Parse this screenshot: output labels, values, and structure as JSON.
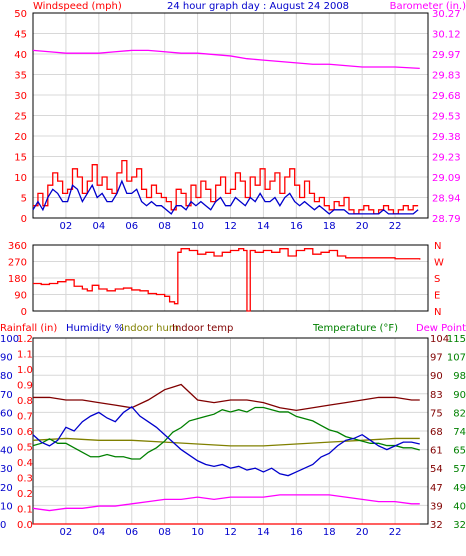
{
  "header": {
    "wind_title": "Windspeed (mph)",
    "graph_title": "24 hour graph day : August 24 2008",
    "baro_title": "Barometer (in.)"
  },
  "colors": {
    "wind": "#ff0000",
    "wind_avg": "#0000cc",
    "baro": "#ff00ff",
    "dir": "#ff0000",
    "humidity": "#0000cc",
    "in_hum": "#808000",
    "in_temp": "#800000",
    "temp": "#008000",
    "dew": "#ff00ff",
    "rain": "#ff0000",
    "axis_red": "#ff0000",
    "axis_blue": "#0000cc",
    "axis_olive": "#808000",
    "axis_maroon": "#800000",
    "axis_green": "#008000",
    "axis_magenta": "#ff00ff",
    "grid": "#d8d8d8",
    "frame": "#000000"
  },
  "chart_data": [
    {
      "type": "line",
      "name": "wind-baro",
      "title": "24 hour graph day : August 24 2008",
      "ylabel_left": "Windspeed (mph)",
      "ylabel_right": "Barometer (in.)",
      "x_ticks": [
        "02",
        "04",
        "06",
        "08",
        "10",
        "12",
        "14",
        "16",
        "18",
        "20",
        "22"
      ],
      "left_ticks": [
        "50",
        "45",
        "40",
        "35",
        "30",
        "25",
        "20",
        "15",
        "10",
        "5",
        "0"
      ],
      "right_ticks": [
        "30.27",
        "30.12",
        "29.97",
        "29.83",
        "29.68",
        "29.53",
        "29.38",
        "29.23",
        "29.09",
        "28.94",
        "28.79"
      ],
      "ylim": [
        0,
        50
      ],
      "baro_ylim": [
        28.79,
        30.27
      ],
      "series": [
        {
          "key": "gust",
          "x": [
            0,
            0.3,
            0.6,
            0.9,
            1.2,
            1.5,
            1.8,
            2.1,
            2.4,
            2.7,
            3.0,
            3.3,
            3.6,
            3.9,
            4.2,
            4.5,
            4.8,
            5.1,
            5.4,
            5.7,
            6.0,
            6.3,
            6.6,
            6.9,
            7.2,
            7.5,
            7.8,
            8.1,
            8.4,
            8.7,
            9.0,
            9.3,
            9.6,
            9.9,
            10.2,
            10.5,
            10.8,
            11.1,
            11.4,
            11.7,
            12.0,
            12.3,
            12.6,
            12.9,
            13.2,
            13.5,
            13.8,
            14.1,
            14.4,
            14.7,
            15.0,
            15.3,
            15.6,
            15.9,
            16.2,
            16.5,
            16.8,
            17.1,
            17.4,
            17.7,
            18.0,
            18.3,
            18.6,
            18.9,
            19.2,
            19.5,
            19.8,
            20.1,
            20.4,
            20.7,
            21.0,
            21.3,
            21.6,
            21.9,
            22.2,
            22.5,
            22.8,
            23.1,
            23.4
          ],
          "values": [
            3,
            6,
            3,
            8,
            11,
            9,
            6,
            7,
            12,
            10,
            6,
            9,
            13,
            8,
            10,
            7,
            6,
            11,
            14,
            9,
            10,
            12,
            7,
            5,
            8,
            6,
            5,
            4,
            2,
            7,
            6,
            3,
            8,
            5,
            9,
            7,
            4,
            8,
            10,
            6,
            7,
            11,
            9,
            5,
            10,
            8,
            12,
            7,
            9,
            11,
            6,
            10,
            12,
            8,
            5,
            9,
            6,
            4,
            5,
            3,
            2,
            4,
            3,
            5,
            2,
            1,
            2,
            3,
            2,
            1,
            2,
            3,
            2,
            1,
            2,
            3,
            2,
            3,
            3
          ]
        },
        {
          "key": "average",
          "x": [
            0,
            0.3,
            0.6,
            0.9,
            1.2,
            1.5,
            1.8,
            2.1,
            2.4,
            2.7,
            3.0,
            3.3,
            3.6,
            3.9,
            4.2,
            4.5,
            4.8,
            5.1,
            5.4,
            5.7,
            6.0,
            6.3,
            6.6,
            6.9,
            7.2,
            7.5,
            7.8,
            8.1,
            8.4,
            8.7,
            9.0,
            9.3,
            9.6,
            9.9,
            10.2,
            10.5,
            10.8,
            11.1,
            11.4,
            11.7,
            12.0,
            12.3,
            12.6,
            12.9,
            13.2,
            13.5,
            13.8,
            14.1,
            14.4,
            14.7,
            15.0,
            15.3,
            15.6,
            15.9,
            16.2,
            16.5,
            16.8,
            17.1,
            17.4,
            17.7,
            18.0,
            18.3,
            18.6,
            18.9,
            19.2,
            19.5,
            19.8,
            20.1,
            20.4,
            20.7,
            21.0,
            21.3,
            21.6,
            21.9,
            22.2,
            22.5,
            22.8,
            23.1,
            23.4
          ],
          "values": [
            2,
            4,
            2,
            5,
            7,
            6,
            4,
            4,
            8,
            7,
            4,
            6,
            8,
            5,
            6,
            4,
            4,
            6,
            9,
            6,
            6,
            7,
            4,
            3,
            4,
            3,
            3,
            2,
            1,
            3,
            3,
            2,
            4,
            3,
            4,
            3,
            2,
            4,
            5,
            3,
            3,
            5,
            4,
            3,
            5,
            4,
            6,
            4,
            4,
            5,
            3,
            5,
            6,
            4,
            3,
            4,
            3,
            2,
            3,
            2,
            1,
            2,
            2,
            2,
            1,
            1,
            1,
            1,
            1,
            1,
            1,
            2,
            1,
            1,
            1,
            1,
            1,
            1,
            2
          ]
        },
        {
          "key": "barometer",
          "x": [
            0,
            1,
            2,
            3,
            4,
            5,
            6,
            7,
            8,
            9,
            10,
            11,
            12,
            13,
            14,
            15,
            16,
            17,
            18,
            19,
            20,
            21,
            22,
            23.5
          ],
          "values": [
            30.0,
            29.99,
            29.98,
            29.98,
            29.98,
            29.99,
            30.0,
            30.0,
            29.99,
            29.98,
            29.98,
            29.97,
            29.96,
            29.94,
            29.93,
            29.92,
            29.91,
            29.9,
            29.9,
            29.89,
            29.88,
            29.88,
            29.88,
            29.87
          ]
        }
      ]
    },
    {
      "type": "line",
      "name": "wind-direction",
      "left_ticks": [
        "360",
        "270",
        "180",
        "90",
        "0"
      ],
      "right_ticks": [
        "N",
        "W",
        "S",
        "E",
        "N"
      ],
      "ylim": [
        0,
        360
      ],
      "series": [
        {
          "key": "direction",
          "x": [
            0,
            0.5,
            1.0,
            1.5,
            2.0,
            2.5,
            3.0,
            3.3,
            3.6,
            4.0,
            4.5,
            5.0,
            5.5,
            6.0,
            6.5,
            7.0,
            7.5,
            8.0,
            8.3,
            8.6,
            8.8,
            9.0,
            9.5,
            10.0,
            10.5,
            11.0,
            11.5,
            12.0,
            12.5,
            12.8,
            13.0,
            13.2,
            13.5,
            14.0,
            14.5,
            15.0,
            15.5,
            16.0,
            16.5,
            17.0,
            17.5,
            18.0,
            18.5,
            19.0,
            20.0,
            21.0,
            22.0,
            23.5
          ],
          "values": [
            150,
            145,
            150,
            160,
            170,
            135,
            120,
            110,
            140,
            120,
            110,
            120,
            125,
            115,
            110,
            95,
            90,
            80,
            50,
            40,
            320,
            340,
            330,
            310,
            320,
            300,
            320,
            330,
            340,
            330,
            0,
            330,
            320,
            330,
            320,
            340,
            300,
            330,
            340,
            310,
            320,
            330,
            300,
            290,
            290,
            290,
            285,
            280
          ]
        }
      ]
    },
    {
      "type": "line",
      "name": "temperature-humidity-rain",
      "ylabel_left": "Rainfall (in)",
      "ylabel_left2": "Humidity %",
      "ylabel_left3": "Indoor hum",
      "ylabel_left4": "Indoor temp",
      "ylabel_right": "Temperature (°F)",
      "ylabel_right2": "Dew Point",
      "rain_ticks": [
        "1.2",
        "1.1",
        "1.0",
        "0.9",
        "0.8",
        "0.7",
        "0.6",
        "0.5",
        "0.4",
        "0.3",
        "0.2",
        "0.1",
        "0.0"
      ],
      "hum_ticks": [
        "100",
        "90",
        "80",
        "70",
        "60",
        "50",
        "40",
        "30",
        "20",
        "10",
        "0"
      ],
      "temp_ticks": [
        "115",
        "107",
        "98",
        "90",
        "82",
        "74",
        "65",
        "57",
        "49",
        "40",
        "32"
      ],
      "indoor_ticks": [
        "104",
        "97",
        "90",
        "83",
        "75",
        "68",
        "61",
        "54",
        "47",
        "39",
        "32"
      ],
      "x_ticks": [
        "02",
        "04",
        "06",
        "08",
        "10",
        "12",
        "14",
        "16",
        "18",
        "20",
        "22"
      ],
      "series": [
        {
          "key": "humidity",
          "x": [
            0,
            0.5,
            1,
            1.5,
            2,
            2.5,
            3,
            3.5,
            4,
            4.5,
            5,
            5.5,
            6,
            6.5,
            7,
            7.5,
            8,
            8.5,
            9,
            9.5,
            10,
            10.5,
            11,
            11.5,
            12,
            12.5,
            13,
            13.5,
            14,
            14.5,
            15,
            15.5,
            16,
            16.5,
            17,
            17.5,
            18,
            18.5,
            19,
            19.5,
            20,
            20.5,
            21,
            21.5,
            22,
            22.5,
            23,
            23.5
          ],
          "values": [
            48,
            44,
            42,
            45,
            52,
            50,
            55,
            58,
            60,
            57,
            55,
            60,
            63,
            58,
            55,
            52,
            48,
            44,
            40,
            37,
            34,
            32,
            31,
            32,
            30,
            31,
            29,
            30,
            28,
            30,
            27,
            26,
            28,
            30,
            32,
            36,
            38,
            42,
            45,
            46,
            48,
            45,
            42,
            40,
            42,
            44,
            44,
            43
          ]
        },
        {
          "key": "temperature",
          "x": [
            0,
            0.5,
            1,
            1.5,
            2,
            2.5,
            3,
            3.5,
            4,
            4.5,
            5,
            5.5,
            6,
            6.5,
            7,
            7.5,
            8,
            8.5,
            9,
            9.5,
            10,
            10.5,
            11,
            11.5,
            12,
            12.5,
            13,
            13.5,
            14,
            14.5,
            15,
            15.5,
            16,
            16.5,
            17,
            17.5,
            18,
            18.5,
            19,
            19.5,
            20,
            20.5,
            21,
            21.5,
            22,
            22.5,
            23,
            23.5
          ],
          "values": [
            67,
            68,
            70,
            68,
            68,
            66,
            64,
            62,
            62,
            63,
            62,
            62,
            61,
            61,
            64,
            66,
            69,
            73,
            75,
            78,
            79,
            80,
            81,
            83,
            82,
            83,
            82,
            84,
            84,
            83,
            82,
            82,
            80,
            79,
            78,
            76,
            74,
            73,
            71,
            70,
            69,
            68,
            68,
            67,
            67,
            66,
            66,
            65
          ]
        },
        {
          "key": "dewpoint",
          "x": [
            0,
            1,
            2,
            3,
            4,
            5,
            6,
            7,
            8,
            9,
            10,
            11,
            12,
            13,
            14,
            15,
            16,
            17,
            18,
            19,
            20,
            21,
            22,
            23,
            23.5
          ],
          "values": [
            39,
            38,
            39,
            39,
            40,
            40,
            41,
            42,
            43,
            43,
            44,
            43,
            44,
            44,
            44,
            45,
            45,
            45,
            45,
            44,
            43,
            42,
            42,
            41,
            41
          ]
        },
        {
          "key": "indoor_humidity",
          "x": [
            0,
            2,
            4,
            6,
            8,
            10,
            12,
            14,
            16,
            18,
            20,
            22,
            23.5
          ],
          "values": [
            45,
            46,
            45,
            45,
            44,
            43,
            42,
            42,
            43,
            44,
            45,
            46,
            46
          ]
        },
        {
          "key": "indoor_temp",
          "x": [
            0,
            1,
            2,
            3,
            4,
            5,
            6,
            7,
            8,
            8.5,
            9,
            9.5,
            10,
            11,
            12,
            13,
            14,
            15,
            16,
            17,
            18,
            19,
            20,
            21,
            22,
            23,
            23.5
          ],
          "values": [
            81,
            81,
            80,
            80,
            79,
            78,
            77,
            80,
            84,
            85,
            86,
            83,
            80,
            79,
            80,
            80,
            79,
            77,
            76,
            77,
            78,
            79,
            80,
            81,
            81,
            80,
            80
          ]
        },
        {
          "key": "rainfall",
          "x": [
            0,
            23.5
          ],
          "values": [
            0,
            0
          ]
        }
      ]
    }
  ]
}
